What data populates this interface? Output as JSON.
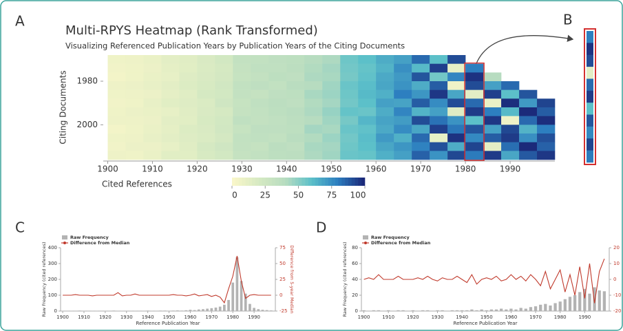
{
  "chart_data": [
    {
      "type": "heatmap",
      "panel": "A",
      "inset_label": "B",
      "title": "Multi-RPYS Heatmap (Rank Transformed)",
      "subtitle": "Visualizing Referenced Publication Years by Publication Years of the Citing Documents",
      "xlabel": "Cited References",
      "ylabel": "Citing Documents",
      "x": [
        1900,
        1904,
        1908,
        1912,
        1916,
        1920,
        1924,
        1928,
        1932,
        1936,
        1940,
        1944,
        1948,
        1952,
        1956,
        1960,
        1964,
        1968,
        1972,
        1976,
        1980,
        1984,
        1988,
        1992,
        1996
      ],
      "y": [
        1970,
        1974,
        1978,
        1982,
        1986,
        1990,
        1994,
        1998,
        2002,
        2006,
        2010,
        2014
      ],
      "values": [
        [
          5,
          6,
          8,
          12,
          14,
          18,
          22,
          32,
          33,
          35,
          36,
          40,
          42,
          56,
          60,
          66,
          70,
          85,
          60,
          92,
          null,
          null,
          null,
          null,
          null
        ],
        [
          4,
          5,
          7,
          11,
          13,
          17,
          20,
          31,
          34,
          34,
          37,
          41,
          44,
          55,
          58,
          64,
          75,
          62,
          95,
          10,
          80,
          null,
          null,
          null,
          null
        ],
        [
          3,
          5,
          8,
          10,
          15,
          18,
          21,
          30,
          32,
          36,
          35,
          42,
          43,
          54,
          59,
          67,
          72,
          90,
          55,
          78,
          98,
          40,
          null,
          null,
          null
        ],
        [
          6,
          7,
          9,
          12,
          16,
          19,
          23,
          33,
          35,
          33,
          38,
          40,
          45,
          57,
          61,
          68,
          74,
          66,
          88,
          5,
          92,
          70,
          85,
          null,
          null
        ],
        [
          5,
          6,
          7,
          11,
          14,
          20,
          22,
          32,
          31,
          35,
          36,
          43,
          46,
          56,
          62,
          65,
          80,
          73,
          97,
          68,
          12,
          95,
          60,
          90,
          null
        ],
        [
          4,
          5,
          9,
          13,
          15,
          17,
          24,
          30,
          34,
          37,
          35,
          41,
          44,
          55,
          60,
          70,
          69,
          88,
          76,
          92,
          85,
          8,
          99,
          72,
          94
        ],
        [
          5,
          7,
          8,
          10,
          14,
          18,
          20,
          31,
          33,
          36,
          38,
          42,
          47,
          58,
          57,
          66,
          78,
          64,
          70,
          15,
          96,
          80,
          62,
          100,
          88
        ],
        [
          6,
          6,
          7,
          12,
          13,
          19,
          22,
          34,
          32,
          34,
          37,
          40,
          45,
          54,
          63,
          69,
          71,
          92,
          83,
          74,
          60,
          97,
          6,
          85,
          99
        ],
        [
          3,
          5,
          8,
          11,
          16,
          18,
          23,
          30,
          35,
          35,
          36,
          44,
          43,
          57,
          59,
          67,
          76,
          68,
          95,
          82,
          90,
          70,
          93,
          64,
          80
        ],
        [
          5,
          6,
          9,
          12,
          15,
          17,
          21,
          33,
          34,
          33,
          38,
          41,
          46,
          55,
          61,
          72,
          65,
          85,
          10,
          98,
          77,
          88,
          96,
          75,
          91
        ],
        [
          4,
          7,
          7,
          10,
          14,
          20,
          24,
          32,
          31,
          37,
          35,
          43,
          44,
          56,
          60,
          68,
          73,
          79,
          91,
          66,
          94,
          12,
          84,
          100,
          87
        ],
        [
          6,
          5,
          8,
          13,
          13,
          19,
          22,
          31,
          33,
          36,
          37,
          42,
          45,
          57,
          58,
          65,
          70,
          87,
          74,
          93,
          81,
          96,
          68,
          89,
          97
        ]
      ],
      "highlight_column": 1980,
      "xlim": [
        1899,
        2000
      ],
      "xticks": [
        1900,
        1910,
        1920,
        1930,
        1940,
        1950,
        1960,
        1970,
        1980,
        1990
      ],
      "ylim": [
        1968,
        2016
      ],
      "yticks": [
        1980,
        2000
      ],
      "colorscale": [
        "#f8f6c9",
        "#d5e9c2",
        "#b7dcc0",
        "#5cc0c9",
        "#2d7fc0",
        "#1b2a7a"
      ],
      "clim": [
        0,
        100
      ],
      "cticks": [
        0,
        25,
        50,
        75,
        100
      ]
    },
    {
      "type": "combo",
      "panel": "C",
      "xlabel": "Reference Publication Year",
      "ylabel": "Raw Frequency (cited references)",
      "y2label": "Difference from 5-year Median",
      "x": [
        1900,
        1902,
        1904,
        1906,
        1908,
        1910,
        1912,
        1914,
        1916,
        1918,
        1920,
        1922,
        1924,
        1926,
        1928,
        1930,
        1932,
        1934,
        1936,
        1938,
        1940,
        1942,
        1944,
        1946,
        1948,
        1950,
        1952,
        1954,
        1956,
        1958,
        1960,
        1962,
        1964,
        1966,
        1968,
        1970,
        1972,
        1974,
        1976,
        1978,
        1980,
        1982,
        1984,
        1986,
        1988,
        1990,
        1992,
        1994,
        1996,
        1998
      ],
      "series": [
        {
          "name": "Raw Frequency",
          "type": "bar",
          "color": "#b3b3b3",
          "values": [
            2,
            1,
            2,
            1,
            3,
            2,
            1,
            2,
            2,
            1,
            2,
            1,
            3,
            2,
            2,
            1,
            2,
            2,
            1,
            2,
            3,
            2,
            2,
            3,
            3,
            2,
            3,
            4,
            3,
            5,
            8,
            6,
            10,
            12,
            15,
            18,
            22,
            28,
            40,
            70,
            180,
            340,
            190,
            110,
            45,
            20,
            12,
            8,
            6,
            4
          ]
        },
        {
          "name": "Difference from Median",
          "type": "line",
          "color": "#c0392b",
          "axis": "y2",
          "values": [
            0,
            0,
            0,
            1,
            0,
            0,
            0,
            -1,
            0,
            0,
            0,
            0,
            0,
            4,
            -1,
            0,
            0,
            2,
            0,
            0,
            0,
            0,
            0,
            0,
            0,
            0,
            1,
            0,
            0,
            -1,
            0,
            2,
            -1,
            0,
            1,
            -2,
            0,
            -3,
            -12,
            10,
            30,
            62,
            22,
            -5,
            0,
            1,
            0,
            0,
            0,
            0
          ]
        }
      ],
      "xlim": [
        1899,
        2000
      ],
      "xticks": [
        1900,
        1910,
        1920,
        1930,
        1940,
        1950,
        1960,
        1970,
        1980,
        1990
      ],
      "ylim": [
        0,
        400
      ],
      "yticks": [
        0,
        100,
        200,
        300,
        400
      ],
      "y2lim": [
        -25,
        75
      ],
      "y2ticks": [
        -25,
        0,
        25,
        50,
        75
      ]
    },
    {
      "type": "combo",
      "panel": "D",
      "xlabel": "Reference Publication Year",
      "ylabel": "Raw Frequency (cited references)",
      "y2label": "Difference from 5-year Median",
      "x": [
        1900,
        1902,
        1904,
        1906,
        1908,
        1910,
        1912,
        1914,
        1916,
        1918,
        1920,
        1922,
        1924,
        1926,
        1928,
        1930,
        1932,
        1934,
        1936,
        1938,
        1940,
        1942,
        1944,
        1946,
        1948,
        1950,
        1952,
        1954,
        1956,
        1958,
        1960,
        1962,
        1964,
        1966,
        1968,
        1970,
        1972,
        1974,
        1976,
        1978,
        1980,
        1982,
        1984,
        1986,
        1988,
        1990,
        1992,
        1994,
        1996,
        1998
      ],
      "series": [
        {
          "name": "Raw Frequency",
          "type": "bar",
          "color": "#b3b3b3",
          "values": [
            1,
            0,
            1,
            1,
            0,
            1,
            0,
            1,
            1,
            0,
            1,
            0,
            1,
            1,
            0,
            1,
            1,
            0,
            1,
            1,
            1,
            1,
            2,
            1,
            2,
            1,
            2,
            2,
            3,
            2,
            3,
            2,
            4,
            3,
            5,
            6,
            8,
            9,
            7,
            10,
            12,
            15,
            18,
            20,
            24,
            28,
            22,
            30,
            26,
            25
          ]
        },
        {
          "name": "Difference from Median",
          "type": "line",
          "color": "#c0392b",
          "axis": "y2",
          "values": [
            0,
            1,
            0,
            3,
            0,
            0,
            0,
            2,
            0,
            0,
            0,
            1,
            0,
            2,
            0,
            -1,
            1,
            0,
            0,
            2,
            0,
            -2,
            3,
            -3,
            0,
            1,
            0,
            2,
            -1,
            0,
            3,
            0,
            2,
            -1,
            3,
            0,
            -4,
            5,
            -6,
            0,
            6,
            -8,
            3,
            -10,
            8,
            -12,
            10,
            -15,
            5,
            13
          ]
        }
      ],
      "xlim": [
        1899,
        2000
      ],
      "xticks": [
        1900,
        1910,
        1920,
        1930,
        1940,
        1950,
        1960,
        1970,
        1980,
        1990
      ],
      "ylim": [
        0,
        80
      ],
      "yticks": [
        0,
        20,
        40,
        60,
        80
      ],
      "y2lim": [
        -20,
        20
      ],
      "y2ticks": [
        -20,
        -10,
        0,
        10,
        20
      ]
    }
  ]
}
